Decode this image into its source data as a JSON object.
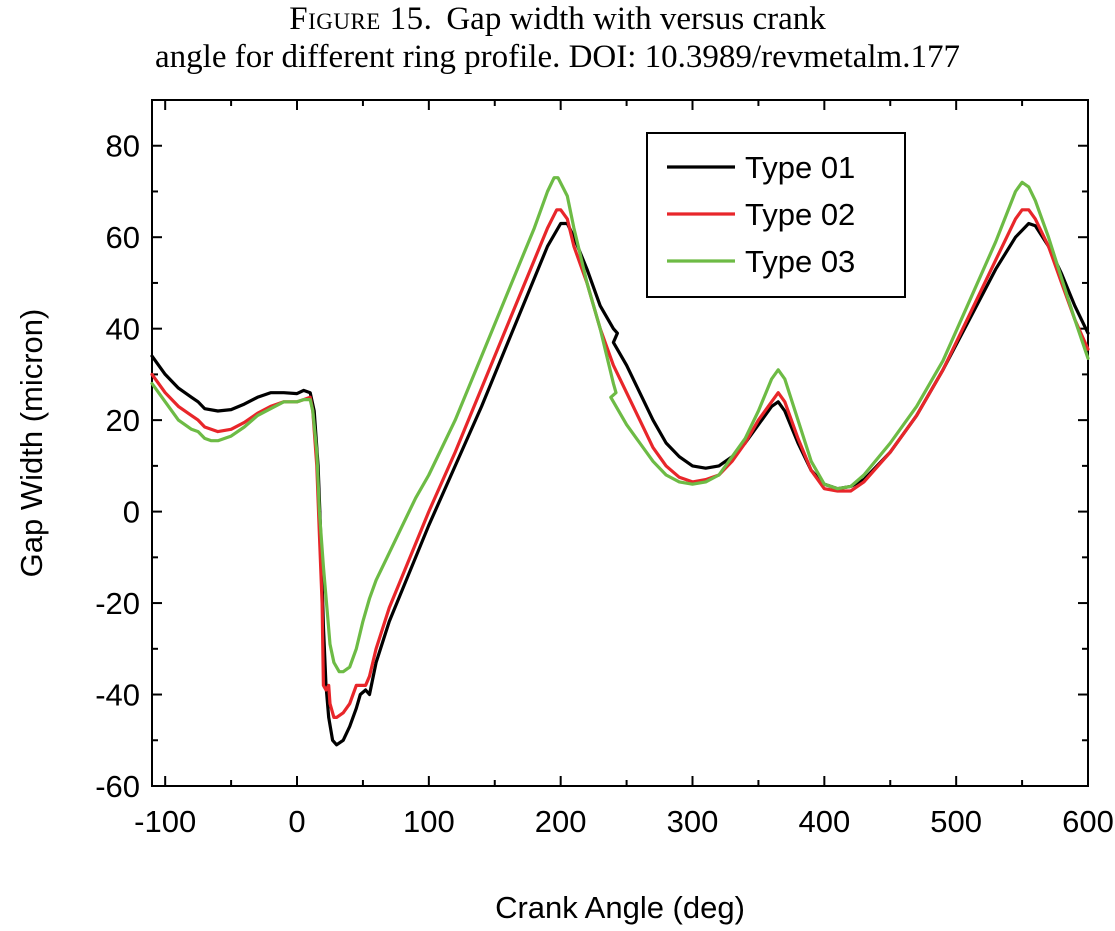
{
  "caption": {
    "label": "Figure 15.",
    "line1": "Gap width with versus crank",
    "line2": "angle for different ring profile. DOI: 10.3989/revmetalm.177"
  },
  "chart_data": {
    "type": "line",
    "xlabel": "Crank Angle (deg)",
    "ylabel": "Gap Width (micron)",
    "xlim": [
      -110,
      600
    ],
    "ylim": [
      -60,
      90
    ],
    "xticks": [
      -100,
      0,
      100,
      200,
      300,
      400,
      500,
      600
    ],
    "yticks": [
      -60,
      -40,
      -20,
      0,
      20,
      40,
      60,
      80
    ],
    "legend_position": "top-right",
    "grid": false,
    "series": [
      {
        "name": "Type 01",
        "color": "#000000",
        "points": [
          [
            -110,
            34
          ],
          [
            -100,
            30
          ],
          [
            -90,
            27
          ],
          [
            -80,
            25
          ],
          [
            -75,
            24
          ],
          [
            -70,
            22.5
          ],
          [
            -60,
            22
          ],
          [
            -50,
            22.3
          ],
          [
            -40,
            23.5
          ],
          [
            -30,
            25
          ],
          [
            -20,
            26
          ],
          [
            -10,
            26
          ],
          [
            0,
            25.8
          ],
          [
            5,
            26.5
          ],
          [
            10,
            26
          ],
          [
            13,
            22
          ],
          [
            16,
            10
          ],
          [
            18,
            -5
          ],
          [
            20,
            -25
          ],
          [
            22,
            -38
          ],
          [
            24,
            -45
          ],
          [
            27,
            -50
          ],
          [
            30,
            -51
          ],
          [
            35,
            -50
          ],
          [
            40,
            -47
          ],
          [
            45,
            -43
          ],
          [
            48,
            -40
          ],
          [
            52,
            -39
          ],
          [
            55,
            -40
          ],
          [
            60,
            -33
          ],
          [
            70,
            -24
          ],
          [
            80,
            -17
          ],
          [
            100,
            -3
          ],
          [
            120,
            10
          ],
          [
            140,
            23
          ],
          [
            160,
            37
          ],
          [
            180,
            51
          ],
          [
            190,
            58
          ],
          [
            200,
            63
          ],
          [
            205,
            63
          ],
          [
            210,
            60
          ],
          [
            220,
            53
          ],
          [
            230,
            45
          ],
          [
            240,
            40
          ],
          [
            243,
            39
          ],
          [
            240,
            37
          ],
          [
            250,
            32
          ],
          [
            260,
            26
          ],
          [
            270,
            20
          ],
          [
            280,
            15
          ],
          [
            290,
            12
          ],
          [
            300,
            10
          ],
          [
            310,
            9.5
          ],
          [
            320,
            10
          ],
          [
            330,
            12
          ],
          [
            340,
            15
          ],
          [
            350,
            19
          ],
          [
            360,
            23
          ],
          [
            365,
            24
          ],
          [
            370,
            22
          ],
          [
            380,
            15
          ],
          [
            390,
            9
          ],
          [
            400,
            6
          ],
          [
            410,
            5
          ],
          [
            420,
            5.5
          ],
          [
            430,
            7
          ],
          [
            450,
            13
          ],
          [
            470,
            21
          ],
          [
            490,
            31
          ],
          [
            510,
            42
          ],
          [
            530,
            53
          ],
          [
            545,
            60
          ],
          [
            555,
            63
          ],
          [
            560,
            62.5
          ],
          [
            570,
            58
          ],
          [
            580,
            52
          ],
          [
            590,
            45
          ],
          [
            600,
            39
          ]
        ]
      },
      {
        "name": "Type 02",
        "color": "#e8262a",
        "points": [
          [
            -110,
            30
          ],
          [
            -100,
            26
          ],
          [
            -90,
            23
          ],
          [
            -80,
            21
          ],
          [
            -75,
            20
          ],
          [
            -70,
            18.5
          ],
          [
            -60,
            17.5
          ],
          [
            -50,
            18
          ],
          [
            -40,
            19.5
          ],
          [
            -30,
            21.5
          ],
          [
            -20,
            23
          ],
          [
            -10,
            24
          ],
          [
            0,
            24
          ],
          [
            5,
            24.5
          ],
          [
            10,
            25
          ],
          [
            12,
            22
          ],
          [
            15,
            10
          ],
          [
            17,
            -5
          ],
          [
            19,
            -20
          ],
          [
            20,
            -38
          ],
          [
            22,
            -39
          ],
          [
            24,
            -38
          ],
          [
            25,
            -42
          ],
          [
            28,
            -45
          ],
          [
            30,
            -45
          ],
          [
            35,
            -44
          ],
          [
            40,
            -42
          ],
          [
            45,
            -38
          ],
          [
            50,
            -38
          ],
          [
            52,
            -38
          ],
          [
            55,
            -36
          ],
          [
            60,
            -30
          ],
          [
            70,
            -21
          ],
          [
            80,
            -14
          ],
          [
            100,
            0
          ],
          [
            120,
            13
          ],
          [
            140,
            27
          ],
          [
            160,
            41
          ],
          [
            180,
            55
          ],
          [
            190,
            62
          ],
          [
            197,
            66
          ],
          [
            200,
            66
          ],
          [
            205,
            64
          ],
          [
            210,
            58
          ],
          [
            220,
            50
          ],
          [
            230,
            40
          ],
          [
            240,
            32
          ],
          [
            250,
            26
          ],
          [
            260,
            20
          ],
          [
            270,
            14
          ],
          [
            280,
            10
          ],
          [
            290,
            7.5
          ],
          [
            300,
            6.5
          ],
          [
            310,
            7
          ],
          [
            320,
            8
          ],
          [
            330,
            11
          ],
          [
            340,
            15
          ],
          [
            350,
            20
          ],
          [
            360,
            24
          ],
          [
            365,
            26
          ],
          [
            370,
            24
          ],
          [
            380,
            16
          ],
          [
            390,
            9
          ],
          [
            400,
            5
          ],
          [
            410,
            4.5
          ],
          [
            420,
            4.5
          ],
          [
            430,
            6.5
          ],
          [
            450,
            13
          ],
          [
            470,
            21
          ],
          [
            490,
            31
          ],
          [
            510,
            43
          ],
          [
            530,
            55
          ],
          [
            545,
            64
          ],
          [
            550,
            66
          ],
          [
            555,
            66
          ],
          [
            560,
            64
          ],
          [
            570,
            58
          ],
          [
            580,
            50
          ],
          [
            590,
            42
          ],
          [
            600,
            35.5
          ]
        ]
      },
      {
        "name": "Type 03",
        "color": "#6dbb45",
        "points": [
          [
            -110,
            28
          ],
          [
            -100,
            24
          ],
          [
            -90,
            20
          ],
          [
            -80,
            18
          ],
          [
            -75,
            17.5
          ],
          [
            -70,
            16
          ],
          [
            -65,
            15.5
          ],
          [
            -60,
            15.5
          ],
          [
            -50,
            16.5
          ],
          [
            -40,
            18.5
          ],
          [
            -30,
            21
          ],
          [
            -20,
            22.5
          ],
          [
            -10,
            24
          ],
          [
            0,
            24
          ],
          [
            5,
            24.5
          ],
          [
            10,
            24.5
          ],
          [
            12,
            22
          ],
          [
            15,
            13
          ],
          [
            17,
            0
          ],
          [
            20,
            -12
          ],
          [
            23,
            -22
          ],
          [
            25,
            -29
          ],
          [
            28,
            -33
          ],
          [
            32,
            -35
          ],
          [
            35,
            -35
          ],
          [
            40,
            -34
          ],
          [
            45,
            -30
          ],
          [
            50,
            -24
          ],
          [
            55,
            -19
          ],
          [
            60,
            -15
          ],
          [
            70,
            -9
          ],
          [
            80,
            -3
          ],
          [
            90,
            3
          ],
          [
            100,
            8
          ],
          [
            120,
            20
          ],
          [
            140,
            34
          ],
          [
            160,
            48
          ],
          [
            180,
            62
          ],
          [
            190,
            70
          ],
          [
            195,
            73
          ],
          [
            198,
            73
          ],
          [
            205,
            69
          ],
          [
            210,
            62
          ],
          [
            220,
            50
          ],
          [
            230,
            40
          ],
          [
            240,
            28
          ],
          [
            242,
            26
          ],
          [
            238,
            25
          ],
          [
            240,
            24
          ],
          [
            250,
            19
          ],
          [
            260,
            15
          ],
          [
            270,
            11
          ],
          [
            280,
            8
          ],
          [
            290,
            6.5
          ],
          [
            300,
            6
          ],
          [
            310,
            6.5
          ],
          [
            320,
            8
          ],
          [
            330,
            12
          ],
          [
            340,
            16
          ],
          [
            350,
            22
          ],
          [
            360,
            29
          ],
          [
            365,
            31
          ],
          [
            370,
            29
          ],
          [
            380,
            20
          ],
          [
            390,
            11
          ],
          [
            400,
            6
          ],
          [
            410,
            5
          ],
          [
            420,
            5.5
          ],
          [
            430,
            8
          ],
          [
            450,
            15
          ],
          [
            470,
            23
          ],
          [
            490,
            33
          ],
          [
            510,
            46
          ],
          [
            530,
            59
          ],
          [
            545,
            70
          ],
          [
            550,
            72
          ],
          [
            555,
            71
          ],
          [
            560,
            68
          ],
          [
            570,
            60
          ],
          [
            580,
            51
          ],
          [
            590,
            42
          ],
          [
            600,
            33.5
          ]
        ]
      }
    ]
  }
}
